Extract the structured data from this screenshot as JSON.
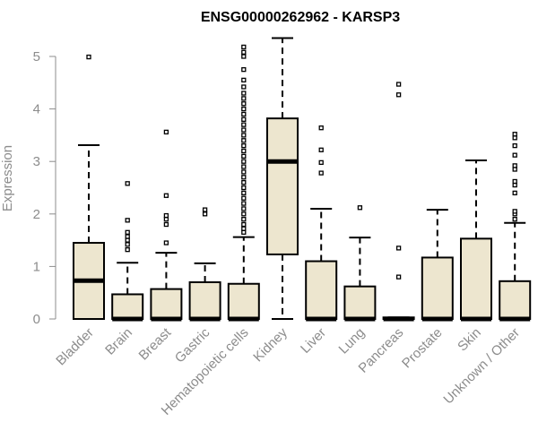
{
  "chart_data": {
    "type": "boxplot",
    "title": "ENSG00000262962 - KARSP3",
    "xlabel": "",
    "ylabel": "Expression",
    "ylim": [
      0,
      5.35
    ],
    "yticks": [
      "0",
      "1",
      "2",
      "3",
      "4",
      "5"
    ],
    "box_fill": "#ede6cf",
    "categories": [
      "Bladder",
      "Brain",
      "Breast",
      "Gastric",
      "Hematopoietic cells",
      "Kidney",
      "Liver",
      "Lung",
      "Pancreas",
      "Prostate",
      "Skin",
      "Unknown / Other"
    ],
    "boxes": [
      {
        "name": "Bladder",
        "low": 0,
        "q1": 0,
        "median": 0.73,
        "q3": 1.45,
        "high": 3.31,
        "outliers": [
          4.99
        ]
      },
      {
        "name": "Brain",
        "low": 0,
        "q1": 0,
        "median": 0,
        "q3": 0.47,
        "high": 1.07,
        "outliers": [
          1.32,
          1.42,
          1.5,
          1.57,
          1.65,
          1.88,
          2.58
        ]
      },
      {
        "name": "Breast",
        "low": 0,
        "q1": 0,
        "median": 0,
        "q3": 0.57,
        "high": 1.26,
        "outliers": [
          1.45,
          1.8,
          1.9,
          1.97,
          2.35,
          3.56
        ]
      },
      {
        "name": "Gastric",
        "low": 0,
        "q1": 0,
        "median": 0,
        "q3": 0.7,
        "high": 1.06,
        "outliers": [
          2.0,
          2.08
        ]
      },
      {
        "name": "Hematopoietic cells",
        "low": 0,
        "q1": 0,
        "median": 0,
        "q3": 0.67,
        "high": 1.56,
        "outliers": [
          1.65,
          1.72,
          1.8,
          1.9,
          2.0,
          2.1,
          2.2,
          2.3,
          2.4,
          2.5,
          2.6,
          2.7,
          2.8,
          2.9,
          3.0,
          3.1,
          3.2,
          3.3,
          3.4,
          3.5,
          3.6,
          3.7,
          3.8,
          3.9,
          4.0,
          4.1,
          4.2,
          4.3,
          4.42,
          4.55,
          4.75,
          5.0,
          5.08,
          5.18
        ]
      },
      {
        "name": "Kidney",
        "low": 0,
        "q1": 1.23,
        "median": 3.0,
        "q3": 3.82,
        "high": 5.35,
        "outliers": []
      },
      {
        "name": "Liver",
        "low": 0,
        "q1": 0,
        "median": 0,
        "q3": 1.1,
        "high": 2.1,
        "outliers": [
          2.78,
          2.98,
          3.22,
          3.64
        ]
      },
      {
        "name": "Lung",
        "low": 0,
        "q1": 0,
        "median": 0,
        "q3": 0.62,
        "high": 1.55,
        "outliers": [
          2.12
        ]
      },
      {
        "name": "Pancreas",
        "low": 0,
        "q1": 0,
        "median": 0,
        "q3": 0.03,
        "high": 0.03,
        "outliers": [
          0.8,
          1.35,
          4.27,
          4.47
        ]
      },
      {
        "name": "Prostate",
        "low": 0,
        "q1": 0,
        "median": 0,
        "q3": 1.17,
        "high": 2.08,
        "outliers": []
      },
      {
        "name": "Skin",
        "low": 0,
        "q1": 0,
        "median": 0,
        "q3": 1.53,
        "high": 3.02,
        "outliers": []
      },
      {
        "name": "Unknown / Other",
        "low": 0,
        "q1": 0,
        "median": 0,
        "q3": 0.72,
        "high": 1.83,
        "outliers": [
          1.9,
          2.0,
          2.05,
          2.4,
          2.55,
          2.62,
          2.85,
          2.92,
          3.12,
          3.3,
          3.45,
          3.52
        ]
      }
    ]
  }
}
